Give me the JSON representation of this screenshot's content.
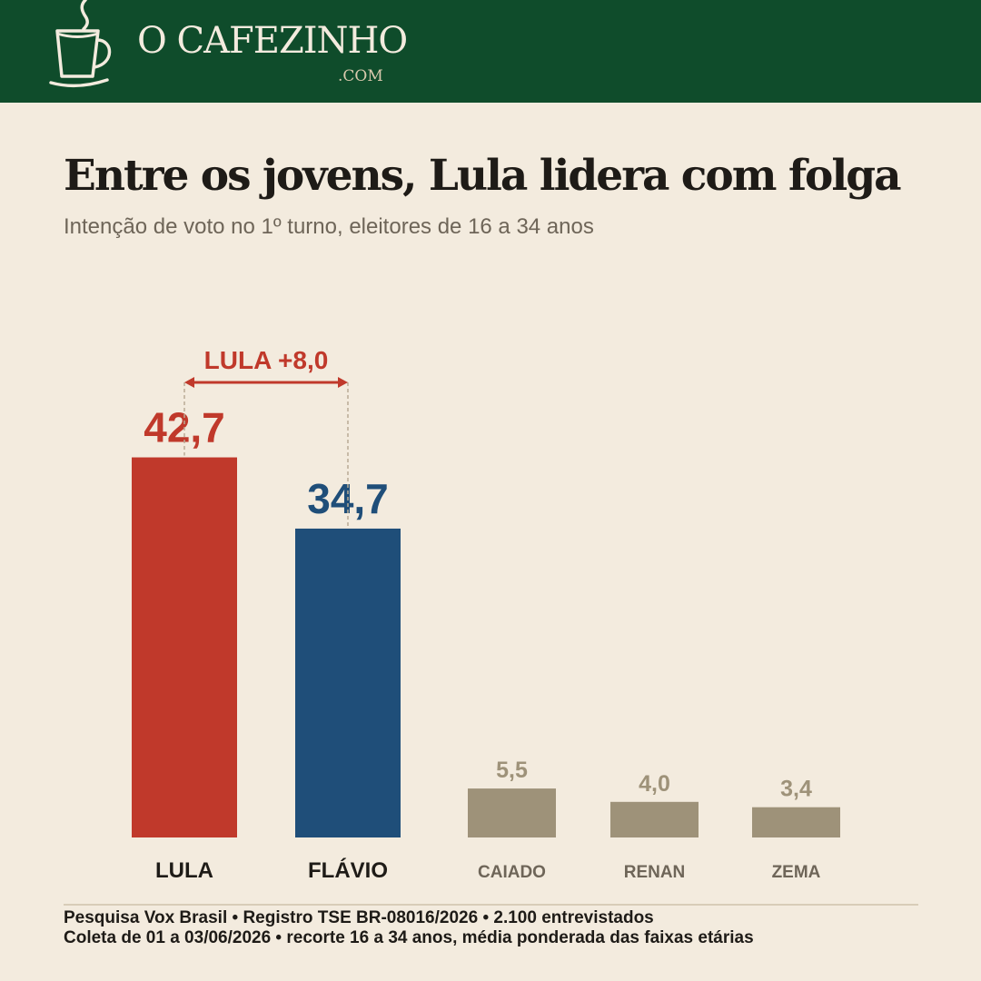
{
  "brand": {
    "name": "O CAFEZINHO",
    "domain": ".COM"
  },
  "colors": {
    "header_bg": "#0f4c2b",
    "background": "#f3ebde",
    "lula": "#c0392b",
    "flavio": "#1f4e79",
    "others": "#9e9279"
  },
  "chart_data": {
    "type": "bar",
    "title": "Entre os jovens, Lula lidera com folga",
    "subtitle": "Intenção de voto no 1º turno, eleitores de 16 a 34 anos",
    "categories": [
      "LULA",
      "FLÁVIO",
      "CAIADO",
      "RENAN",
      "ZEMA"
    ],
    "values": [
      42.7,
      34.7,
      5.5,
      4.0,
      3.4
    ],
    "value_labels": [
      "42,7",
      "34,7",
      "5,5",
      "4,0",
      "3,4"
    ],
    "bar_colors": [
      "#c0392b",
      "#1f4e79",
      "#9e9279",
      "#9e9279",
      "#9e9279"
    ],
    "annotation": {
      "text": "LULA +8,0",
      "from": "LULA",
      "to": "FLÁVIO",
      "difference": 8.0
    },
    "xlabel": "",
    "ylabel": "",
    "grid": false,
    "legend": "none"
  },
  "footer": {
    "line1": "Pesquisa Vox Brasil  •  Registro TSE BR-08016/2026  •  2.100 entrevistados",
    "line2": "Coleta de 01 a 03/06/2026  •  recorte 16 a 34 anos, média ponderada das faixas etárias"
  }
}
